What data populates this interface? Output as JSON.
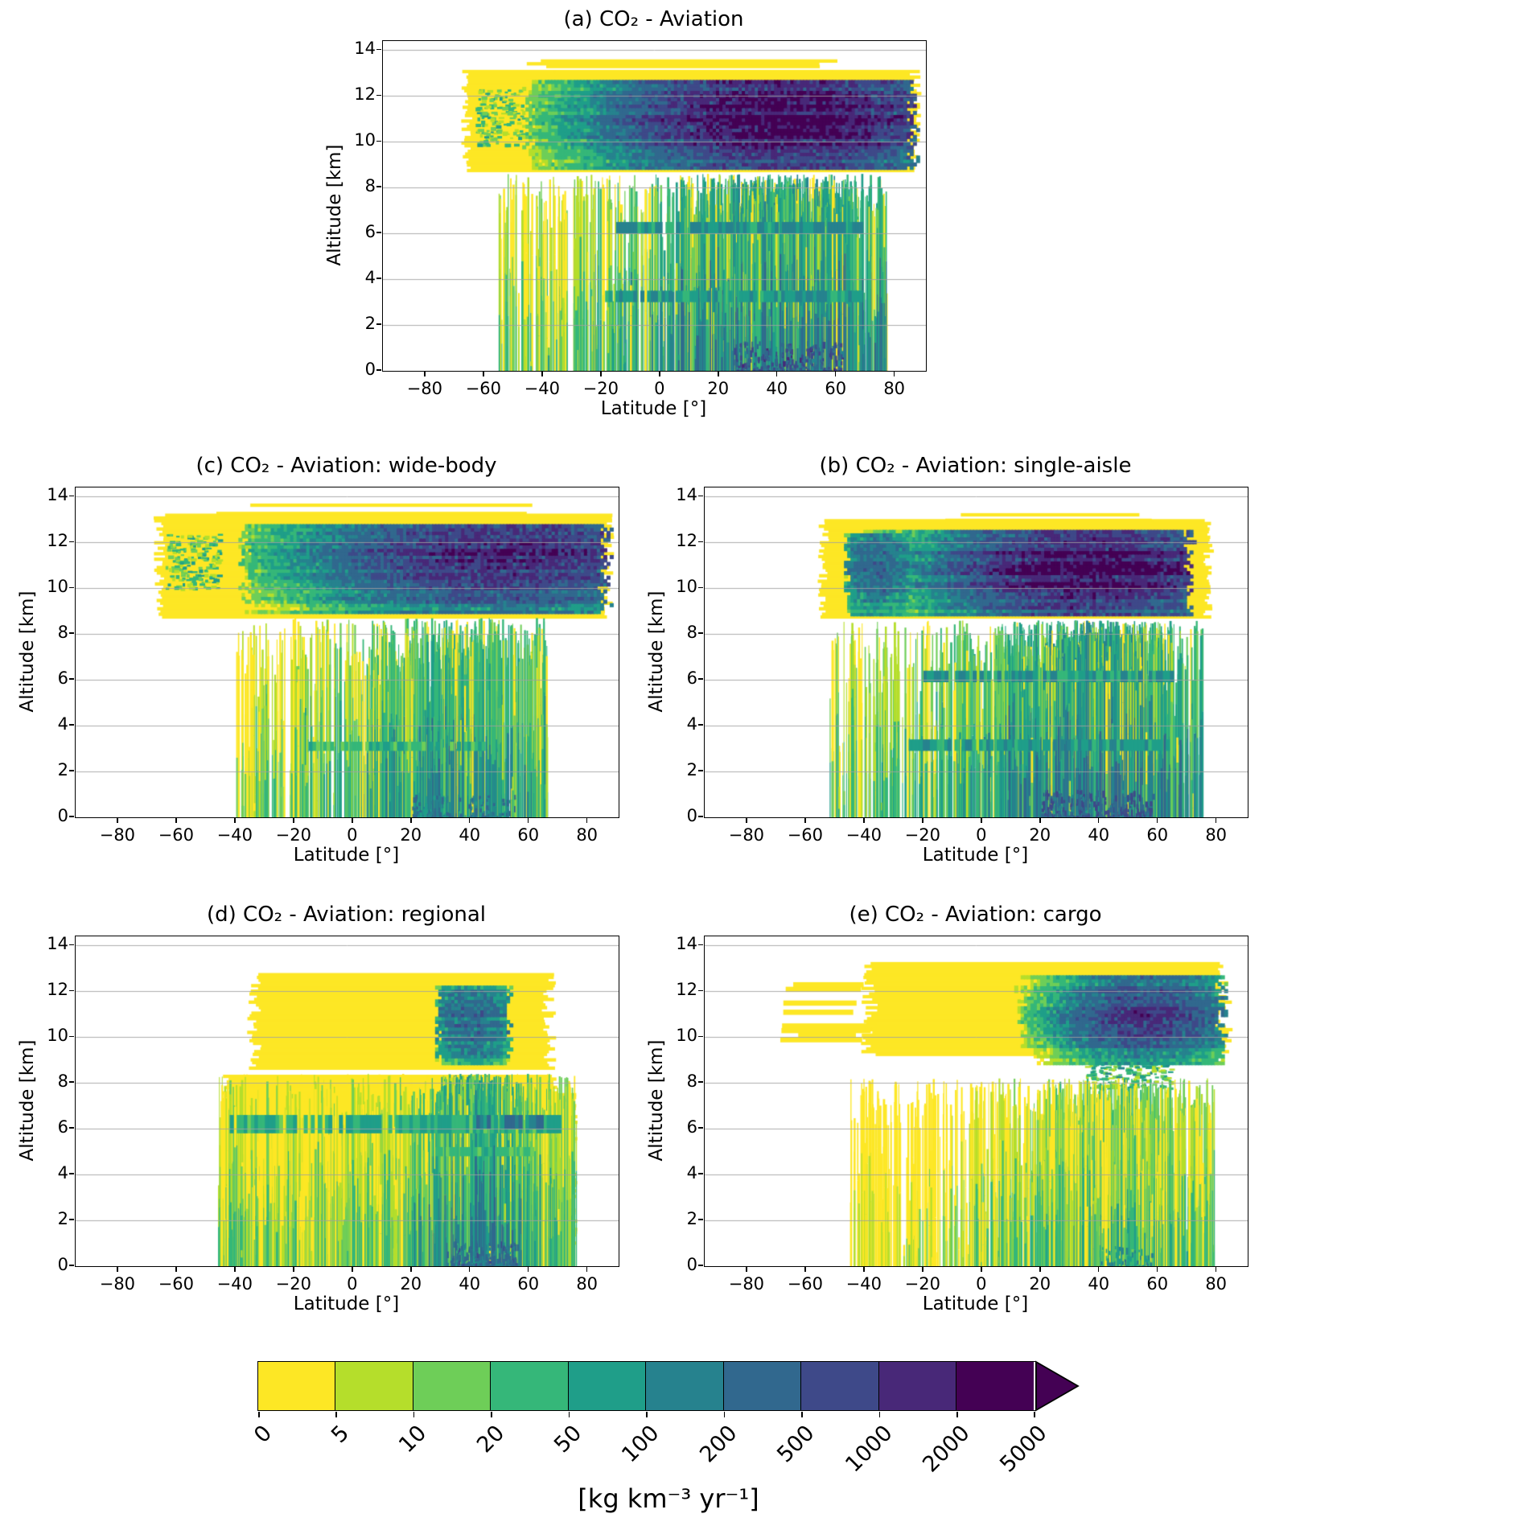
{
  "colorbar": {
    "levels": [
      "0",
      "5",
      "10",
      "20",
      "50",
      "100",
      "200",
      "500",
      "1000",
      "2000",
      "5000"
    ],
    "thresholds": [
      0,
      5,
      10,
      20,
      50,
      100,
      200,
      500,
      1000,
      2000,
      5000
    ],
    "colors": [
      "#fde725",
      "#b5de2b",
      "#6ece58",
      "#35b779",
      "#1f9e89",
      "#26828e",
      "#31688e",
      "#3e4989",
      "#482878",
      "#440154"
    ],
    "extend_color": "#440154",
    "extend": "max",
    "label": "[kg km⁻³ yr⁻¹]"
  },
  "chart_data": [
    {
      "type": "heatmap",
      "panel_id": "a",
      "title": "(a) CO₂ - Aviation",
      "xlabel": "Latitude [°]",
      "ylabel": "Altitude [km]",
      "xlim": [
        -94.5,
        90.5
      ],
      "ylim": [
        0,
        14.4
      ],
      "xticks": [
        -80,
        -60,
        -40,
        -20,
        0,
        20,
        40,
        60,
        80
      ],
      "yticks": [
        0,
        2,
        4,
        6,
        8,
        10,
        12,
        14
      ],
      "value_units": "kg km⁻³ yr⁻¹",
      "value_range": [
        0,
        5000
      ],
      "colormap": "viridis, 10 discrete bins, extend max",
      "grid": "horizontal gridlines at y ticks",
      "description": "Zonal CO₂ emission density of all aviation. Continuous cruise band 8.7–13.1 km from 67°S to 88°N; maximum 2000–5000 kg km⁻³ yr⁻¹ near 25–60°N at 10–12 km; 200–1000 around the equator band; 5–50 south of 30°S. Climb/descent streaks below 8.6 km between 56°S and 77°N, densest and darkest (up to ~500) at 20–60°N near the surface; enhanced layers near 3 km and 6 km.",
      "gen": {
        "seed": 11,
        "blocks": [
          {
            "lat0": -67,
            "lat1": 88,
            "alt0": 8.7,
            "alt1": 13.1,
            "jitter": 4,
            "frac": 1
          },
          {
            "lat0": -46,
            "lat1": 60,
            "alt0": 13.0,
            "alt1": 13.7,
            "jitter": 14,
            "frac": 0.65
          }
        ],
        "speckles": [
          {
            "lat0": -63,
            "lat1": -47,
            "alt0": 9.9,
            "alt1": 12.3,
            "n": 150,
            "vmin": 5,
            "vmax": 70
          }
        ],
        "core": {
          "lat0": -48,
          "lat1": 88,
          "alt0": 8.8,
          "alt1": 12.7,
          "peak_lat": 42,
          "lat_sigma": 27,
          "alt_peak": 11.0,
          "alt_sigma": 1.35,
          "peak_val": 2800,
          "ragged": 5
        },
        "bands": [
          {
            "alt0": 3.0,
            "alt1": 3.5,
            "lat0": -20,
            "lat1": 68,
            "val": 80
          },
          {
            "alt0": 6.0,
            "alt1": 6.5,
            "lat0": -15,
            "lat1": 68,
            "val": 100
          }
        ],
        "low": {
          "lat0": -56,
          "lat1": 77,
          "count": 1400,
          "peak_lat": 40,
          "lat_sigma": 28,
          "max_alt": 8.6,
          "base_val": 110,
          "mix": 0.62
        },
        "ground": {
          "lat0": 25,
          "lat1": 62,
          "alt": 1.3,
          "n": 260,
          "val": 600
        }
      }
    },
    {
      "type": "heatmap",
      "panel_id": "b",
      "title": "(b) CO₂ - Aviation: single-aisle",
      "xlabel": "Latitude [°]",
      "ylabel": "Altitude [km]",
      "xlim": [
        -94.5,
        90.5
      ],
      "ylim": [
        0,
        14.4
      ],
      "xticks": [
        -80,
        -60,
        -40,
        -20,
        0,
        20,
        40,
        60,
        80
      ],
      "yticks": [
        0,
        2,
        4,
        6,
        8,
        10,
        12,
        14
      ],
      "value_units": "kg km⁻³ yr⁻¹",
      "value_range": [
        0,
        5000
      ],
      "colormap": "viridis, 10 discrete bins, extend max",
      "grid": "horizontal gridlines at y ticks",
      "description": "Single-aisle aircraft. Cruise band 8.7–12.9 km from 55°S to 78°N; maximum 1000–5000 near 25–55°N at 10–12 km; secondary enhancement near 35°S. Dense climb/descent streaks 52°S–75°N, strongest at 20–60°N near the surface.",
      "gen": {
        "seed": 22,
        "blocks": [
          {
            "lat0": -55,
            "lat1": 78,
            "alt0": 8.7,
            "alt1": 12.9,
            "jitter": 4,
            "frac": 1
          },
          {
            "lat0": -15,
            "lat1": 58,
            "alt0": 12.8,
            "alt1": 13.4,
            "jitter": 12,
            "frac": 0.6
          }
        ],
        "speckles": [],
        "core": {
          "lat0": -48,
          "lat1": 72,
          "alt0": 8.8,
          "alt1": 12.5,
          "peak_lat": 37,
          "lat_sigma": 24,
          "alt_peak": 10.9,
          "alt_sigma": 1.2,
          "peak_val": 2600,
          "ragged": 4
        },
        "core2": {
          "lat0": -48,
          "lat1": -24,
          "alt0": 8.8,
          "alt1": 12.3,
          "peak_lat": -36,
          "lat_sigma": 7,
          "alt_peak": 10.8,
          "alt_sigma": 1.2,
          "peak_val": 300,
          "ragged": 3
        },
        "bands": [
          {
            "alt0": 2.9,
            "alt1": 3.4,
            "lat0": -25,
            "lat1": 65,
            "val": 70
          },
          {
            "alt0": 5.9,
            "alt1": 6.4,
            "lat0": -20,
            "lat1": 65,
            "val": 85
          }
        ],
        "low": {
          "lat0": -52,
          "lat1": 75,
          "count": 1300,
          "peak_lat": 37,
          "lat_sigma": 25,
          "max_alt": 8.6,
          "base_val": 120,
          "mix": 0.66
        },
        "ground": {
          "lat0": 20,
          "lat1": 58,
          "alt": 1.2,
          "n": 280,
          "val": 500
        }
      }
    },
    {
      "type": "heatmap",
      "panel_id": "c",
      "title": "(c) CO₂ - Aviation: wide-body",
      "xlabel": "Latitude [°]",
      "ylabel": "Altitude [km]",
      "xlim": [
        -94.5,
        90.5
      ],
      "ylim": [
        0,
        14.4
      ],
      "xticks": [
        -80,
        -60,
        -40,
        -20,
        0,
        20,
        40,
        60,
        80
      ],
      "yticks": [
        0,
        2,
        4,
        6,
        8,
        10,
        12,
        14
      ],
      "value_units": "kg km⁻³ yr⁻¹",
      "value_range": [
        0,
        5000
      ],
      "colormap": "viridis, 10 discrete bins, extend max",
      "grid": "horizontal gridlines at y ticks",
      "description": "Wide-body aircraft. Cruise band 8.7–13.2 km spanning 67°S to 88°N; maximum 1000–2000 (specks above 2000) near 35–60°N at 10.5–12.5 km; 200–500 across the tropics and up to the North Pole; scattered 5–80 values 64–46°S. Relatively sparse climb/descent streaks 42°S–66°N.",
      "gen": {
        "seed": 33,
        "blocks": [
          {
            "lat0": -67,
            "lat1": 88,
            "alt0": 8.7,
            "alt1": 13.2,
            "jitter": 4,
            "frac": 1
          },
          {
            "lat0": -45,
            "lat1": 62,
            "alt0": 13.1,
            "alt1": 13.8,
            "jitter": 14,
            "frac": 0.6
          }
        ],
        "speckles": [
          {
            "lat0": -64,
            "lat1": -46,
            "alt0": 10.0,
            "alt1": 12.4,
            "n": 170,
            "vmin": 5,
            "vmax": 80
          }
        ],
        "core": {
          "lat0": -40,
          "lat1": 88,
          "alt0": 8.9,
          "alt1": 12.8,
          "peak_lat": 50,
          "lat_sigma": 30,
          "alt_peak": 11.3,
          "alt_sigma": 1.2,
          "peak_val": 1500,
          "ragged": 5
        },
        "bands": [
          {
            "alt0": 2.9,
            "alt1": 3.3,
            "lat0": -15,
            "lat1": 45,
            "val": 40
          }
        ],
        "low": {
          "lat0": -42,
          "lat1": 66,
          "count": 700,
          "peak_lat": 35,
          "lat_sigma": 28,
          "max_alt": 8.7,
          "base_val": 55,
          "mix": 0.6
        },
        "ground": {
          "lat0": 20,
          "lat1": 55,
          "alt": 1.0,
          "n": 140,
          "val": 250
        }
      }
    },
    {
      "type": "heatmap",
      "panel_id": "d",
      "title": "(d) CO₂ - Aviation: regional",
      "xlabel": "Latitude [°]",
      "ylabel": "Altitude [km]",
      "xlim": [
        -94.5,
        90.5
      ],
      "ylim": [
        0,
        14.4
      ],
      "xticks": [
        -80,
        -60,
        -40,
        -20,
        0,
        20,
        40,
        60,
        80
      ],
      "yticks": [
        0,
        2,
        4,
        6,
        8,
        10,
        12,
        14
      ],
      "value_units": "kg km⁻³ yr⁻¹",
      "value_range": [
        0,
        5000
      ],
      "colormap": "viridis, 10 discrete bins, extend max",
      "grid": "horizontal gridlines at y ticks",
      "description": "Regional aircraft. Mostly low values (0–5, yellow) from 45°S to 76°N below 12.7 km. Concentrated activity 28–54°N: 20–500 at 9–12 km and a dense streak column to the surface. Distinct emission layer near 6–6.5 km across most latitudes, locally 100–500 at 40–65°N; weaker layer near 5 km.",
      "gen": {
        "seed": 44,
        "blocks": [
          {
            "lat0": -35,
            "lat1": 68,
            "alt0": 8.6,
            "alt1": 12.7,
            "jitter": 5,
            "frac": 1
          },
          {
            "lat0": -44,
            "lat1": 70,
            "alt0": 7.4,
            "alt1": 8.3,
            "jitter": 3,
            "frac": 1
          },
          {
            "lat0": -44,
            "lat1": 76,
            "alt0": 0,
            "alt1": 7.5,
            "jitter": 2,
            "frac": 1
          }
        ],
        "speckles": [],
        "core": {
          "lat0": 27,
          "lat1": 54,
          "alt0": 8.8,
          "alt1": 12.2,
          "peak_lat": 40,
          "lat_sigma": 8,
          "alt_peak": 10.7,
          "alt_sigma": 1.2,
          "peak_val": 300,
          "ragged": 3
        },
        "bands": [
          {
            "alt0": 5.8,
            "alt1": 6.6,
            "lat0": -42,
            "lat1": 70,
            "val": 45
          },
          {
            "alt0": 6.0,
            "alt1": 6.6,
            "lat0": 42,
            "lat1": 64,
            "val": 200
          },
          {
            "alt0": 4.8,
            "alt1": 5.2,
            "lat0": 28,
            "lat1": 62,
            "val": 30
          }
        ],
        "low": {
          "lat0": -46,
          "lat1": 76,
          "count": 1500,
          "peak_lat": 42,
          "lat_sigma": 12,
          "max_alt": 8.4,
          "base_val": 90,
          "mix": 0.45
        },
        "ground": {
          "lat0": 32,
          "lat1": 56,
          "alt": 1.1,
          "n": 220,
          "val": 300
        }
      }
    },
    {
      "type": "heatmap",
      "panel_id": "e",
      "title": "(e) CO₂ - Aviation: cargo",
      "xlabel": "Latitude [°]",
      "ylabel": "Altitude [km]",
      "xlim": [
        -94.5,
        90.5
      ],
      "ylim": [
        0,
        14.4
      ],
      "xticks": [
        -80,
        -60,
        -40,
        -20,
        0,
        20,
        40,
        60,
        80
      ],
      "yticks": [
        0,
        2,
        4,
        6,
        8,
        10,
        12,
        14
      ],
      "value_units": "kg km⁻³ yr⁻¹",
      "value_range": [
        0,
        5000
      ],
      "colormap": "viridis, 10 discrete bins, extend max",
      "grid": "horizontal gridlines at y ticks",
      "description": "Cargo aircraft. Cruise band 9.2–13.2 km from 40°S to 84°N, with broken horizontal stripes 67–38°S. Concentrated plume 20–80°N at 9–12.5 km peaking 100–1000 (locally 1000–2000) near 45–65°N, with a fringe descending to 8–9 km around 35–64°N. Sparse yellow climb/descent streaks 45°S–79°N, mostly 0–5.",
      "gen": {
        "seed": 55,
        "blocks": [
          {
            "lat0": -40,
            "lat1": 84,
            "alt0": 9.2,
            "alt1": 13.2,
            "jitter": 6,
            "frac": 0.95
          },
          {
            "lat0": -67,
            "lat1": -38,
            "alt0": 9.4,
            "alt1": 13.0,
            "jitter": 8,
            "frac": 0.55,
            "step": 0.2
          }
        ],
        "speckles": [
          {
            "lat0": 35,
            "lat1": 64,
            "alt0": 7.8,
            "alt1": 9.3,
            "n": 220,
            "vmin": 5,
            "vmax": 120
          }
        ],
        "core": {
          "lat0": 10,
          "lat1": 83,
          "alt0": 8.8,
          "alt1": 12.6,
          "peak_lat": 55,
          "lat_sigma": 14,
          "alt_peak": 11.0,
          "alt_sigma": 1.05,
          "peak_val": 900,
          "ragged": 4
        },
        "bands": [],
        "low": {
          "lat0": -45,
          "lat1": 79,
          "count": 850,
          "peak_lat": 45,
          "lat_sigma": 26,
          "max_alt": 8.2,
          "base_val": 22,
          "mix": 0.5
        },
        "ground": {
          "lat0": 40,
          "lat1": 58,
          "alt": 0.9,
          "n": 70,
          "val": 120
        }
      }
    }
  ]
}
